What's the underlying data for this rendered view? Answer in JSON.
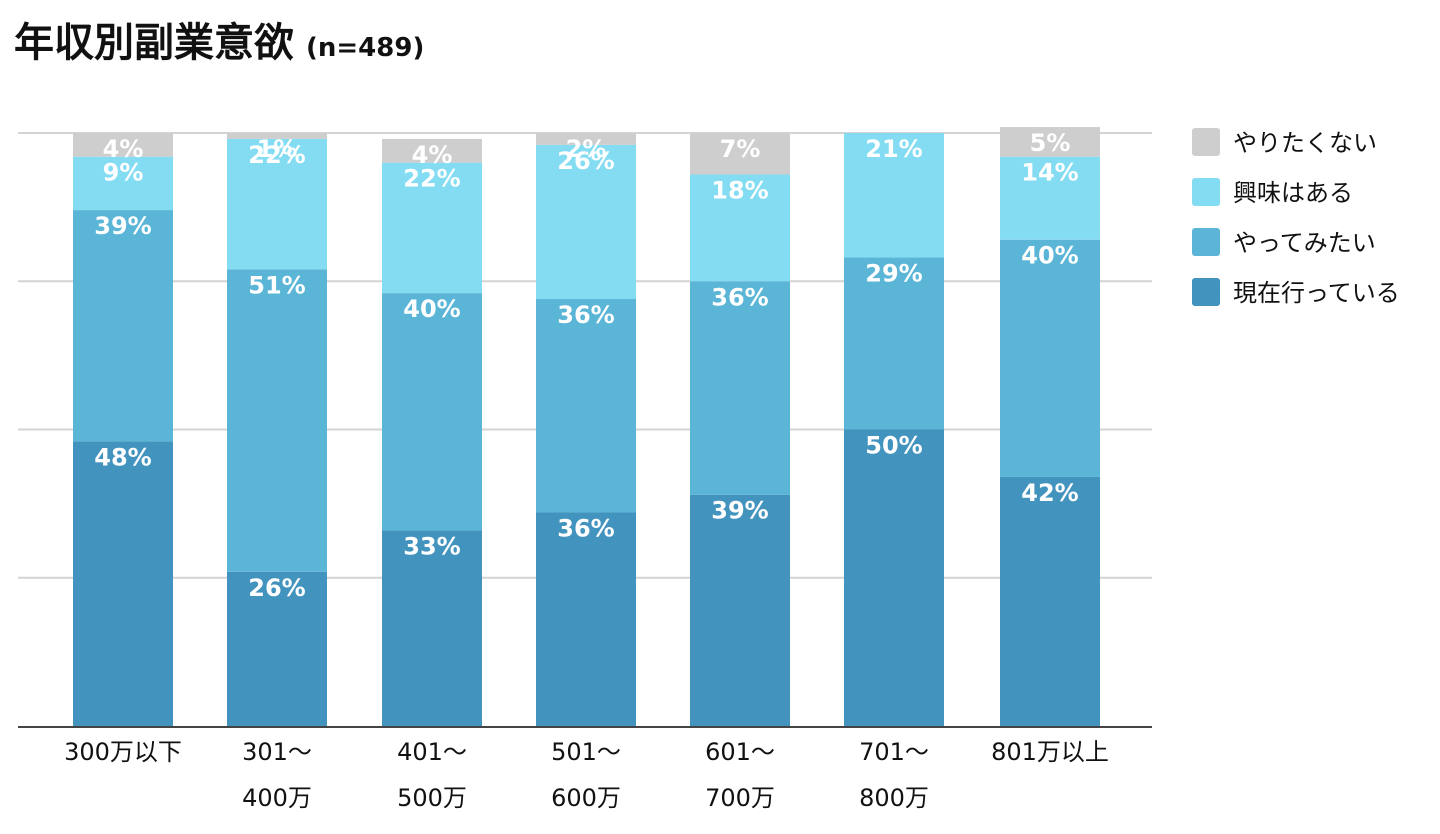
{
  "chart_data": {
    "type": "bar",
    "stacked": true,
    "title": "年収別副業意欲",
    "subtitle": "(n=489)",
    "categories": [
      [
        "300万以下"
      ],
      [
        "301～",
        "400万"
      ],
      [
        "401～",
        "500万"
      ],
      [
        "501～",
        "600万"
      ],
      [
        "601～",
        "700万"
      ],
      [
        "701～",
        "800万"
      ],
      [
        "801万以上"
      ]
    ],
    "ylim": [
      0,
      100
    ],
    "grid": true,
    "legend_position": "right",
    "series": [
      {
        "name": "現在行っている",
        "color": "#4393bf",
        "values": [
          48,
          26,
          33,
          36,
          39,
          50,
          42
        ]
      },
      {
        "name": "やってみたい",
        "color": "#5ab5d7",
        "values": [
          39,
          51,
          40,
          36,
          36,
          29,
          40
        ]
      },
      {
        "name": "興味はある",
        "color": "#84dcf2",
        "values": [
          9,
          22,
          22,
          26,
          18,
          21,
          14
        ]
      },
      {
        "name": "やりたくない",
        "color": "#cecece",
        "values": [
          4,
          1,
          4,
          2,
          7,
          0,
          5
        ]
      }
    ],
    "legend_order": [
      "やりたくない",
      "興味はある",
      "やってみたい",
      "現在行っている"
    ]
  }
}
